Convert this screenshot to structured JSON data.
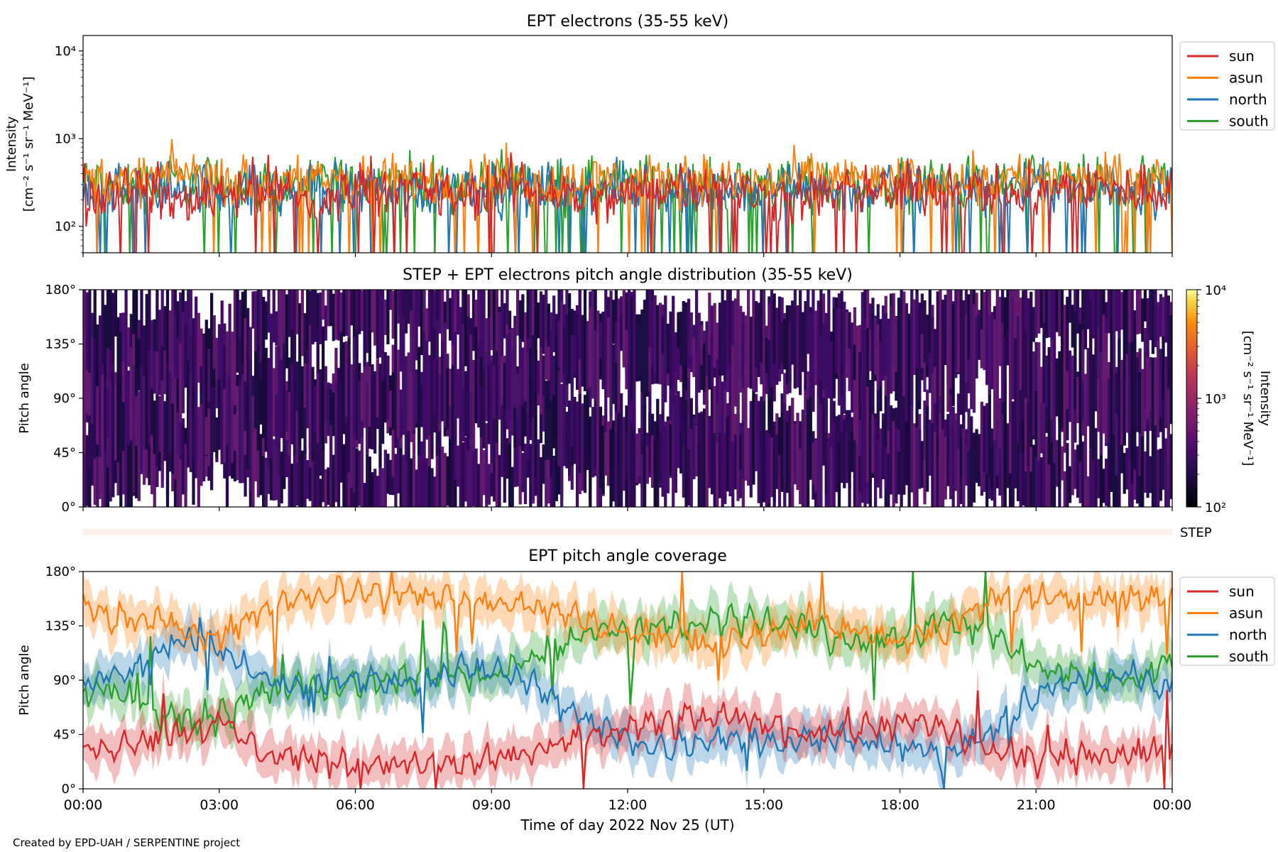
{
  "chart_data": [
    {
      "type": "line",
      "title": "EPT electrons (35-55 keV)",
      "ylabel": [
        "Intensity",
        "[cm⁻² s⁻¹ sr⁻¹ MeV⁻¹]"
      ],
      "yscale": "log",
      "ylim": [
        50,
        15000
      ],
      "yticks": [
        100,
        1000,
        10000
      ],
      "ytick_labels": [
        "10²",
        "10³",
        "10⁴"
      ],
      "legend": "outside right",
      "series": [
        {
          "name": "sun",
          "color": "#d62728",
          "baseline": 240,
          "spread": 0.45,
          "values": [
            230,
            310,
            180,
            260,
            290,
            150,
            330,
            270,
            210,
            300,
            250,
            190,
            280,
            320,
            240,
            200,
            270,
            230,
            310,
            260,
            220,
            290,
            250,
            280
          ]
        },
        {
          "name": "asun",
          "color": "#ff7f0e",
          "baseline": 330,
          "spread": 0.42,
          "values": [
            360,
            300,
            420,
            340,
            280,
            390,
            310,
            350,
            330,
            400,
            290,
            360,
            320,
            380,
            300,
            340,
            370,
            310,
            350,
            330,
            390,
            300,
            360,
            340
          ]
        },
        {
          "name": "north",
          "color": "#1f77b4",
          "baseline": 270,
          "spread": 0.45,
          "values": [
            280,
            250,
            300,
            260,
            240,
            290,
            270,
            230,
            310,
            260,
            280,
            250,
            300,
            270,
            240,
            290,
            260,
            280,
            250,
            300,
            270,
            260,
            280,
            250
          ]
        },
        {
          "name": "south",
          "color": "#2ca02c",
          "baseline": 300,
          "spread": 0.45,
          "values": [
            310,
            290,
            330,
            300,
            280,
            320,
            300,
            340,
            290,
            310,
            300,
            280,
            330,
            300,
            320,
            290,
            310,
            300,
            330,
            290,
            310,
            300,
            320,
            300
          ]
        }
      ]
    },
    {
      "type": "heatmap",
      "title": "STEP + EPT electrons pitch angle distribution (35-55 keV)",
      "ylabel": "Pitch angle",
      "ylim": [
        0,
        180
      ],
      "yticks": [
        0,
        45,
        90,
        135,
        180
      ],
      "ytick_labels": [
        "0°",
        "45°",
        "90°",
        "135°",
        "180°"
      ],
      "colorbar": {
        "label": [
          "Intensity",
          "[cm⁻² s⁻¹ sr⁻¹ MeV⁻¹]"
        ],
        "scale": "log",
        "range": [
          100,
          10000
        ],
        "tick_labels": [
          "10²",
          "10³",
          "10⁴"
        ],
        "colormap": "inferno"
      },
      "value_level": 250
    },
    {
      "type": "bar",
      "label": "STEP",
      "color": "#fdf0ea"
    },
    {
      "type": "area",
      "title": "EPT pitch angle coverage",
      "xlabel": "Time of day 2022 Nov 25 (UT)",
      "ylabel": "Pitch angle",
      "ylim": [
        0,
        180
      ],
      "yticks": [
        0,
        45,
        90,
        135,
        180
      ],
      "ytick_labels": [
        "0°",
        "45°",
        "90°",
        "135°",
        "180°"
      ],
      "xlim": [
        "00:00",
        "24:00"
      ],
      "xtick_labels": [
        "00:00",
        "03:00",
        "06:00",
        "09:00",
        "12:00",
        "15:00",
        "18:00",
        "21:00",
        "00:00"
      ],
      "x_hours": [
        0,
        1,
        2,
        3,
        4,
        5,
        6,
        7,
        8,
        9,
        10,
        11,
        12,
        13,
        14,
        15,
        16,
        17,
        18,
        19,
        20,
        21,
        22,
        23,
        24
      ],
      "legend": "outside right",
      "series": [
        {
          "name": "sun",
          "color": "#d62728",
          "values": [
            30,
            40,
            45,
            55,
            30,
            25,
            20,
            22,
            18,
            25,
            30,
            40,
            50,
            55,
            60,
            55,
            45,
            50,
            55,
            50,
            30,
            25,
            25,
            30,
            30
          ]
        },
        {
          "name": "asun",
          "color": "#ff7f0e",
          "values": [
            150,
            140,
            135,
            125,
            150,
            160,
            165,
            160,
            160,
            155,
            150,
            140,
            130,
            125,
            120,
            130,
            140,
            130,
            125,
            130,
            155,
            160,
            160,
            160,
            155
          ]
        },
        {
          "name": "north",
          "color": "#1f77b4",
          "values": [
            90,
            95,
            120,
            115,
            90,
            85,
            90,
            90,
            95,
            100,
            85,
            60,
            40,
            35,
            40,
            40,
            40,
            40,
            35,
            30,
            45,
            80,
            90,
            95,
            80
          ]
        },
        {
          "name": "south",
          "color": "#2ca02c",
          "values": [
            85,
            80,
            55,
            60,
            80,
            85,
            85,
            90,
            95,
            90,
            110,
            130,
            130,
            135,
            140,
            140,
            135,
            120,
            125,
            140,
            130,
            100,
            95,
            90,
            105
          ]
        }
      ]
    }
  ],
  "footer": "Created by EPD-UAH / SERPENTINE project"
}
